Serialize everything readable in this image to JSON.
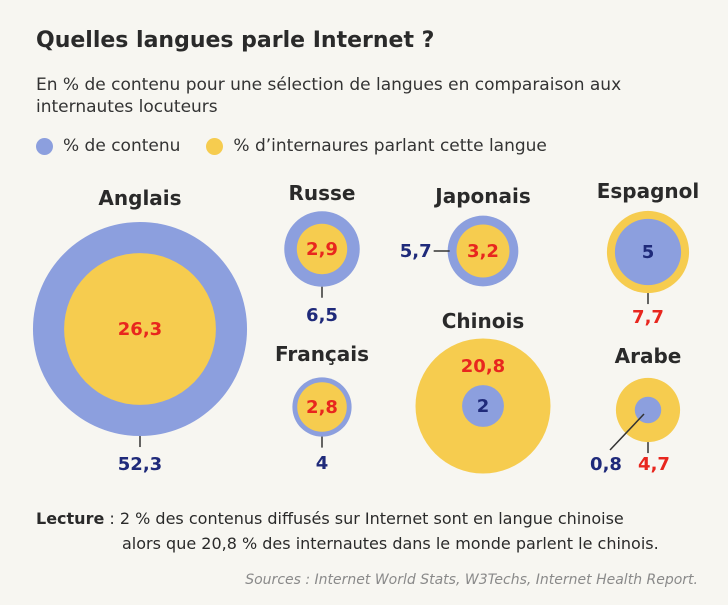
{
  "title": "Quelles langues parle Internet ?",
  "subtitle": "En % de contenu pour une sélection de langues en comparaison aux internautes locuteurs",
  "legend": {
    "content_label": "% de contenu",
    "users_label": "% d’internaures parlant cette langue"
  },
  "colors": {
    "content": "#8c9fde",
    "users": "#f6cc4f",
    "content_text": "#1f2a7a",
    "users_text": "#e8261e"
  },
  "chart_data": {
    "type": "proportional-circles",
    "title": "Quelles langues parle Internet ?",
    "series": [
      {
        "name": "% de contenu"
      },
      {
        "name": "% d’internaures parlant cette langue"
      }
    ],
    "languages": [
      {
        "name": "Anglais",
        "content": "52,3",
        "users": "26,3"
      },
      {
        "name": "Russe",
        "content": "6,5",
        "users": "2,9"
      },
      {
        "name": "Japonais",
        "content": "5,7",
        "users": "3,2"
      },
      {
        "name": "Espagnol",
        "content": "5",
        "users": "7,7"
      },
      {
        "name": "Français",
        "content": "4",
        "users": "2,8"
      },
      {
        "name": "Chinois",
        "content": "2",
        "users": "20,8"
      },
      {
        "name": "Arabe",
        "content": "0,8",
        "users": "4,7"
      }
    ]
  },
  "reading": {
    "label": "Lecture",
    "line1": " : 2 % des contenus diffusés sur Internet sont en langue chinoise",
    "line2": "alors que 20,8 % des internautes dans le monde parlent le chinois."
  },
  "sources": "Sources : Internet World Stats, W3Techs, Internet Health Report."
}
